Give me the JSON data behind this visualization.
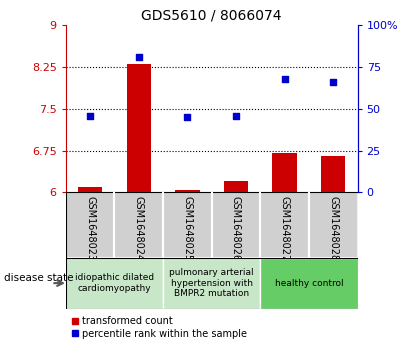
{
  "title": "GDS5610 / 8066074",
  "samples": [
    "GSM1648023",
    "GSM1648024",
    "GSM1648025",
    "GSM1648026",
    "GSM1648027",
    "GSM1648028"
  ],
  "transformed_count": [
    6.1,
    8.3,
    6.05,
    6.2,
    6.7,
    6.65
  ],
  "percentile_rank": [
    46,
    81,
    45,
    46,
    68,
    66
  ],
  "ylim_left": [
    6.0,
    9.0
  ],
  "ylim_right": [
    0,
    100
  ],
  "yticks_left": [
    6.0,
    6.75,
    7.5,
    8.25,
    9.0
  ],
  "ytick_labels_left": [
    "6",
    "6.75",
    "7.5",
    "8.25",
    "9"
  ],
  "yticks_right": [
    0,
    25,
    50,
    75,
    100
  ],
  "ytick_labels_right": [
    "0",
    "25",
    "50",
    "75",
    "100%"
  ],
  "hlines": [
    6.75,
    7.5,
    8.25
  ],
  "bar_color": "#cc0000",
  "scatter_color": "#0000cc",
  "bar_width": 0.5,
  "disease_groups": [
    {
      "label": "idiopathic dilated\ncardiomyopathy",
      "indices": [
        0,
        1
      ],
      "color": "#c8e6c8"
    },
    {
      "label": "pulmonary arterial\nhypertension with\nBMPR2 mutation",
      "indices": [
        2,
        3
      ],
      "color": "#c8e6c8"
    },
    {
      "label": "healthy control",
      "indices": [
        4,
        5
      ],
      "color": "#66cc66"
    }
  ],
  "legend_red_label": "transformed count",
  "legend_blue_label": "percentile rank within the sample",
  "disease_state_label": "disease state",
  "left_tick_color": "#cc0000",
  "right_tick_color": "#0000cc",
  "cell_color": "#d0d0d0",
  "cell_edge_color": "#ffffff"
}
